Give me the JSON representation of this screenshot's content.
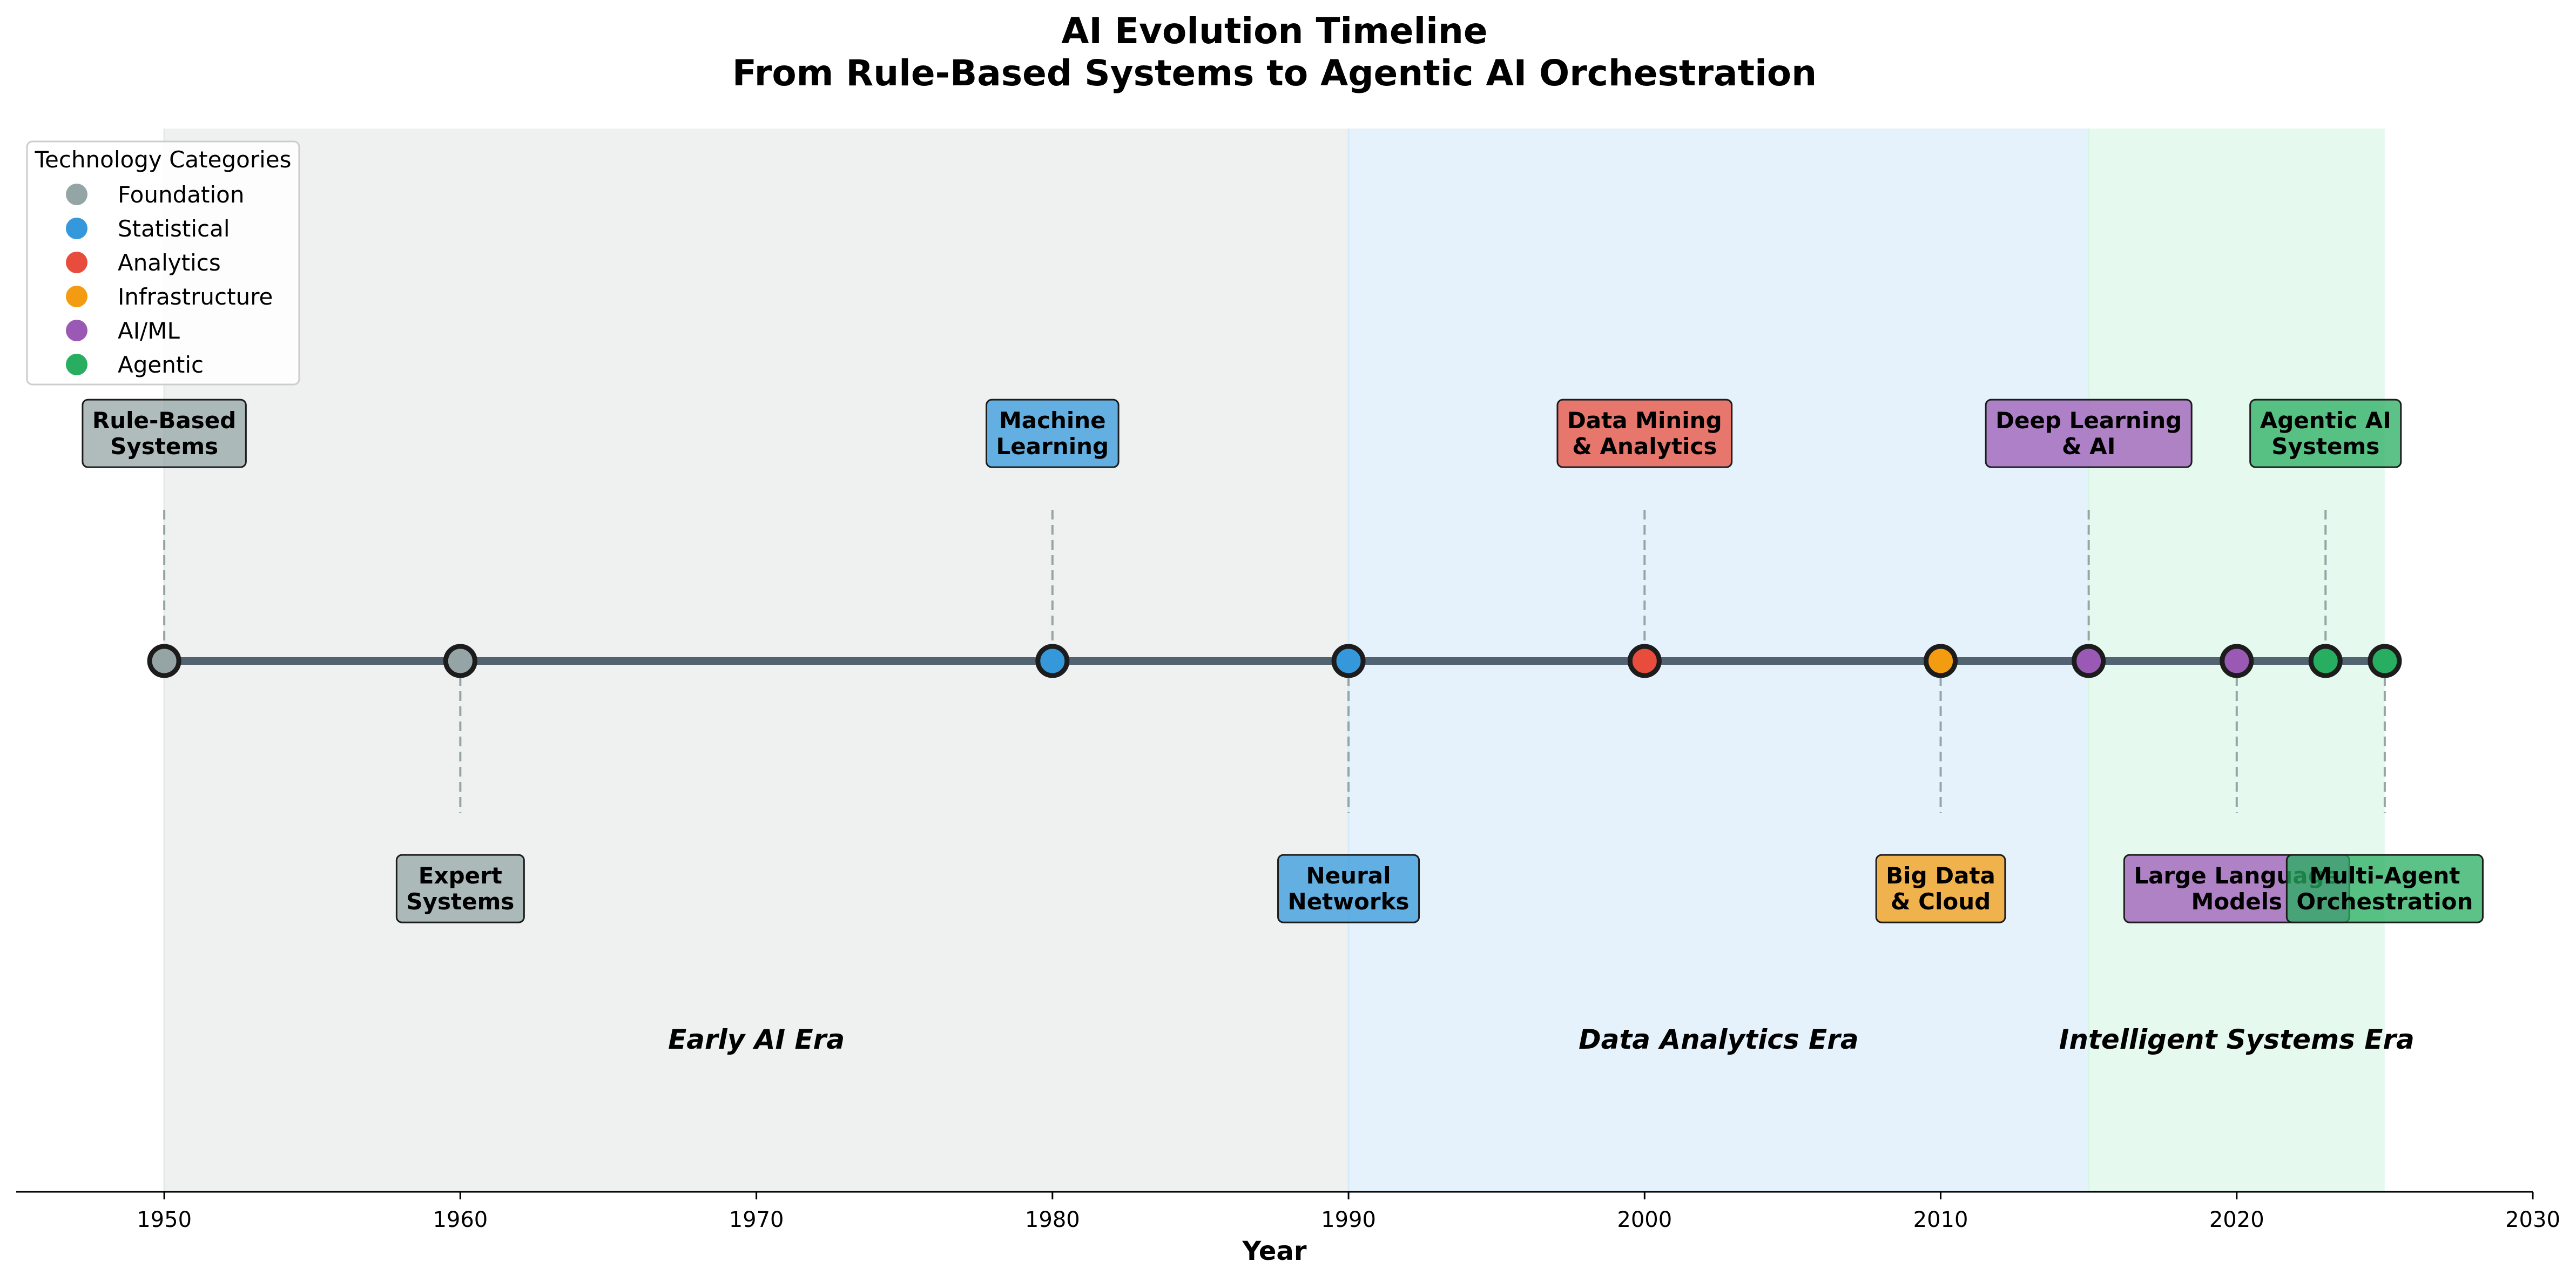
{
  "chart_data": {
    "type": "timeline",
    "title_lines": [
      "AI Evolution Timeline",
      "From Rule-Based Systems to Agentic AI Orchestration"
    ],
    "xlabel": "Year",
    "xlim": [
      1945,
      2030
    ],
    "xticks": [
      1950,
      1960,
      1970,
      1980,
      1990,
      2000,
      2010,
      2020,
      2030
    ],
    "grid": false,
    "legend": {
      "title": "Technology Categories",
      "placement": "top-left",
      "entries": [
        {
          "name": "Foundation",
          "color": "#95a5a6"
        },
        {
          "name": "Statistical",
          "color": "#3498db"
        },
        {
          "name": "Analytics",
          "color": "#e74c3c"
        },
        {
          "name": "Infrastructure",
          "color": "#f39c12"
        },
        {
          "name": "AI/ML",
          "color": "#9b59b6"
        },
        {
          "name": "Agentic",
          "color": "#27ae60"
        }
      ]
    },
    "eras": [
      {
        "name": "Early AI Era",
        "start": 1950,
        "end": 1990,
        "label_x": 1970,
        "color": "#e5e8e8"
      },
      {
        "name": "Data Analytics Era",
        "start": 1990,
        "end": 2015,
        "label_x": 2002.5,
        "color": "#d6eaf8"
      },
      {
        "name": "Intelligent Systems Era",
        "start": 2015,
        "end": 2025,
        "label_x": 2020,
        "color": "#d5f5e3"
      }
    ],
    "events": [
      {
        "year": 1950,
        "lines": [
          "Rule-Based",
          "Systems"
        ],
        "category": "Foundation",
        "position": "above"
      },
      {
        "year": 1960,
        "lines": [
          "Expert",
          "Systems"
        ],
        "category": "Foundation",
        "position": "below"
      },
      {
        "year": 1980,
        "lines": [
          "Machine",
          "Learning"
        ],
        "category": "Statistical",
        "position": "above"
      },
      {
        "year": 1990,
        "lines": [
          "Neural",
          "Networks"
        ],
        "category": "Statistical",
        "position": "below"
      },
      {
        "year": 2000,
        "lines": [
          "Data Mining",
          "& Analytics"
        ],
        "category": "Analytics",
        "position": "above"
      },
      {
        "year": 2010,
        "lines": [
          "Big Data",
          "& Cloud"
        ],
        "category": "Infrastructure",
        "position": "below"
      },
      {
        "year": 2015,
        "lines": [
          "Deep Learning",
          "& AI"
        ],
        "category": "AI/ML",
        "position": "above"
      },
      {
        "year": 2020,
        "lines": [
          "Large Language",
          "Models"
        ],
        "category": "AI/ML",
        "position": "below"
      },
      {
        "year": 2023,
        "lines": [
          "Agentic AI",
          "Systems"
        ],
        "category": "Agentic",
        "position": "above"
      },
      {
        "year": 2025,
        "lines": [
          "Multi-Agent",
          "Orchestration"
        ],
        "category": "Agentic",
        "position": "below"
      }
    ]
  }
}
